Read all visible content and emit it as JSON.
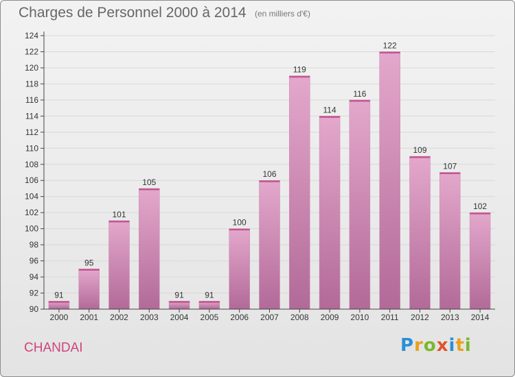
{
  "header": {
    "title": "Charges de Personnel 2000 à 2014",
    "subtitle": "(en milliers d'€)"
  },
  "footer": {
    "commune": "CHANDAI",
    "brand": [
      "P",
      "r",
      "o",
      "x",
      "i",
      "t",
      "i"
    ]
  },
  "colors": {
    "bar_top": "#e4a8cc",
    "bar_bottom": "#b26a98",
    "axis": "#444444",
    "grid": "#d8d8d8"
  },
  "chart_data": {
    "type": "bar",
    "categories": [
      "2000",
      "2001",
      "2002",
      "2003",
      "2004",
      "2005",
      "2006",
      "2007",
      "2008",
      "2009",
      "2010",
      "2011",
      "2012",
      "2013",
      "2014"
    ],
    "values": [
      91,
      95,
      101,
      105,
      91,
      91,
      100,
      106,
      119,
      114,
      116,
      122,
      109,
      107,
      102
    ],
    "data_labels": [
      "91",
      "95",
      "101",
      "105",
      "91",
      "91",
      "100",
      "106",
      "119",
      "114",
      "116",
      "122",
      "109",
      "107",
      "102"
    ],
    "title": "Charges de Personnel 2000 à 2014",
    "xlabel": "",
    "ylabel": "",
    "ylim": [
      90,
      124
    ],
    "yticks": [
      90,
      92,
      94,
      96,
      98,
      100,
      102,
      104,
      106,
      108,
      110,
      112,
      114,
      116,
      118,
      120,
      122,
      124
    ],
    "grid": true,
    "legend": "none"
  }
}
